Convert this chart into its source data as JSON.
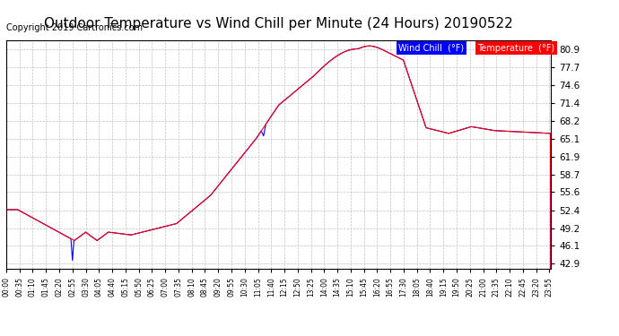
{
  "title": "Outdoor Temperature vs Wind Chill per Minute (24 Hours) 20190522",
  "copyright": "Copyright 2019 Cartronics.com",
  "yticks": [
    42.9,
    46.1,
    49.2,
    52.4,
    55.6,
    58.7,
    61.9,
    65.1,
    68.2,
    71.4,
    74.6,
    77.7,
    80.9
  ],
  "ylim": [
    42.0,
    82.5
  ],
  "temp_color": "#ff0000",
  "wind_color": "#0000ff",
  "bg_color": "#ffffff",
  "grid_color": "#c0c0c0",
  "legend_wind_bg": "#0000ff",
  "legend_temp_bg": "#ff0000",
  "title_fontsize": 11,
  "copyright_fontsize": 7,
  "xtick_labels": [
    "00:00",
    "00:35",
    "01:10",
    "01:45",
    "02:20",
    "02:55",
    "03:30",
    "04:05",
    "04:40",
    "05:15",
    "05:50",
    "06:25",
    "07:00",
    "07:35",
    "08:10",
    "08:45",
    "09:20",
    "09:55",
    "10:30",
    "11:05",
    "11:40",
    "12:15",
    "12:50",
    "13:25",
    "14:00",
    "14:35",
    "15:10",
    "15:45",
    "16:20",
    "16:55",
    "17:30",
    "18:05",
    "18:40",
    "19:15",
    "19:50",
    "20:25",
    "21:00",
    "21:35",
    "22:10",
    "22:45",
    "23:20",
    "23:55"
  ]
}
